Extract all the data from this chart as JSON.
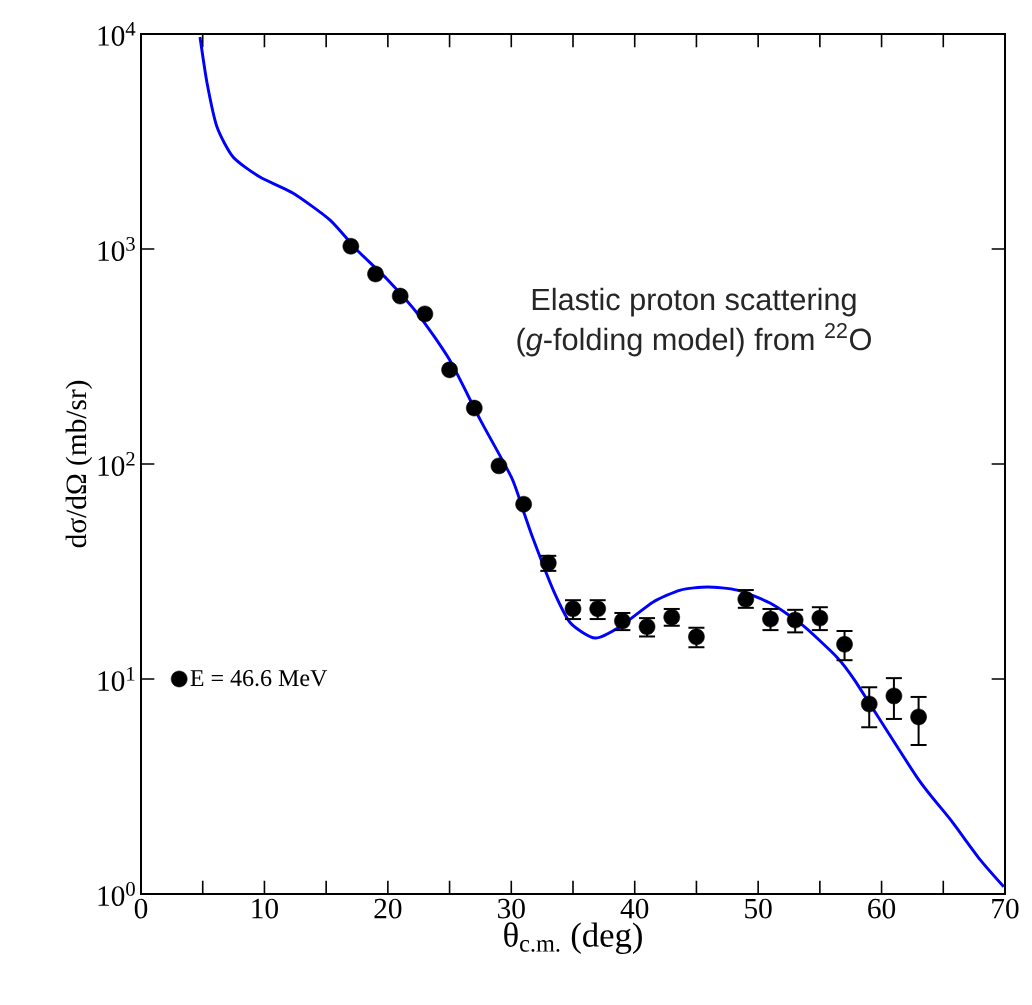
{
  "chart_data": {
    "type": "scatter",
    "xlabel": "θ$_{c.m.}$ (deg)",
    "ylabel": "dσ/dΩ (mb/sr)",
    "annotations": [
      "Elastic proton scattering",
      "(*g*-folding model) from $^{22}$O"
    ],
    "log": "y",
    "xlim": [
      0,
      70
    ],
    "ylim": [
      1,
      10000
    ],
    "xticks": [
      0,
      {
        "value": 5,
        "label": null
      },
      10,
      {
        "value": 15,
        "label": null
      },
      20,
      {
        "value": 25,
        "label": null
      },
      30,
      {
        "value": 35,
        "label": null
      },
      40,
      {
        "value": 45,
        "label": null
      },
      50,
      {
        "value": 55,
        "label": null
      },
      60,
      {
        "value": 65,
        "label": null
      },
      70
    ],
    "yticks": [
      {
        "value": 1,
        "label": "10$^{0}$"
      },
      {
        "value": 10,
        "label": "10$^{1}$"
      },
      {
        "value": 100,
        "label": "10$^{2}$"
      },
      {
        "value": 1000,
        "label": "10$^{3}$"
      },
      {
        "value": 10000,
        "label": "10$^{4}$"
      }
    ],
    "grid": false,
    "legend": "left",
    "series": [
      {
        "type": "line",
        "color": "#0000ff",
        "marker": "none",
        "line_style": "solid",
        "x": [
          4.78,
          5.35,
          6.16,
          7.46,
          9.64,
          12.3,
          15.3,
          17.5,
          20,
          22.5,
          25,
          27.5,
          30,
          31,
          31.8,
          33.4,
          34.8,
          36.8,
          38.8,
          41.5,
          43.7,
          45.9,
          48.3,
          51,
          53.6,
          56.4,
          57.8,
          62.9,
          65.6,
          68,
          69.9
        ],
        "values": [
          9680,
          5920,
          3690,
          2680,
          2160,
          1820,
          1365,
          989,
          718,
          493,
          305,
          160,
          87,
          60,
          44.4,
          25.9,
          18.2,
          15.5,
          17.5,
          22.8,
          25.9,
          26.8,
          25.9,
          22.5,
          17.8,
          12.6,
          9.9,
          3.47,
          2.21,
          1.44,
          1.08
        ]
      },
      {
        "name": "E = 46.6 MeV",
        "color": "#000000",
        "marker": "circle",
        "x": [
          17,
          19,
          21,
          23,
          25,
          27,
          29,
          31,
          33,
          35,
          37,
          39,
          41,
          43,
          45,
          49,
          51,
          53,
          55,
          57,
          59,
          61,
          63
        ],
        "values": [
          1030,
          765,
          604,
          499,
          274,
          182,
          98,
          65,
          34.6,
          21.2,
          21.2,
          18.6,
          17.5,
          19.4,
          15.7,
          23.5,
          19.0,
          18.8,
          19.2,
          14.5,
          7.65,
          8.34,
          6.66
        ],
        "errors": [
          null,
          null,
          null,
          null,
          null,
          null,
          null,
          null,
          [
            31.5,
            37.8
          ],
          [
            18.8,
            23.5
          ],
          [
            18.8,
            23.5
          ],
          [
            16.7,
            20.5
          ],
          [
            15.6,
            19.4
          ],
          [
            17.5,
            21.4
          ],
          [
            13.9,
            17.5
          ],
          [
            21.2,
            26.2
          ],
          [
            16.7,
            21.4
          ],
          [
            16.3,
            21.2
          ],
          [
            16.7,
            21.8
          ],
          [
            12.1,
            16.9
          ],
          [
            5.9,
            9.25
          ],
          [
            6.45,
            10.2
          ],
          [
            4.88,
            8.34
          ]
        ]
      }
    ]
  }
}
